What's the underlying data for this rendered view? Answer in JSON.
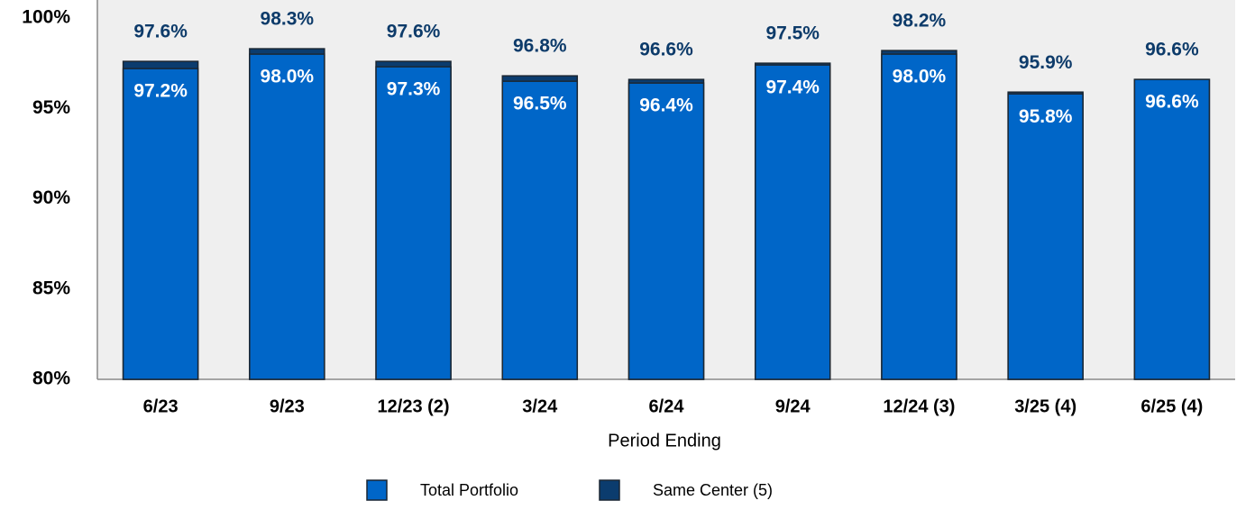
{
  "chart_data": {
    "type": "bar",
    "categories": [
      "6/23",
      "9/23",
      "12/23 (2)",
      "3/24",
      "6/24",
      "9/24",
      "12/24 (3)",
      "3/25 (4)",
      "6/25 (4)"
    ],
    "x_label": "Period Ending",
    "series": [
      {
        "name": "Total Portfolio",
        "color": "#0066c8",
        "values": [
          97.2,
          98.0,
          97.3,
          96.5,
          96.4,
          97.4,
          98.0,
          95.8,
          96.6
        ],
        "value_labels": [
          "97.2%",
          "98.0%",
          "97.3%",
          "96.5%",
          "96.4%",
          "97.4%",
          "98.0%",
          "95.8%",
          "96.6%"
        ]
      },
      {
        "name": "Same Center (5)",
        "color": "#0b3c6e",
        "values": [
          97.6,
          98.3,
          97.6,
          96.8,
          96.6,
          97.5,
          98.2,
          95.9,
          96.6
        ],
        "value_labels": [
          "97.6%",
          "98.3%",
          "97.6%",
          "96.8%",
          "96.6%",
          "97.5%",
          "98.2%",
          "95.9%",
          "96.6%"
        ]
      }
    ],
    "ylim": [
      80,
      100
    ],
    "yticks": [
      {
        "value": 80,
        "label": "80%"
      },
      {
        "value": 85,
        "label": "85%"
      },
      {
        "value": 90,
        "label": "90%"
      },
      {
        "value": 95,
        "label": "95%"
      },
      {
        "value": 100,
        "label": "100%"
      }
    ],
    "grid": false
  }
}
